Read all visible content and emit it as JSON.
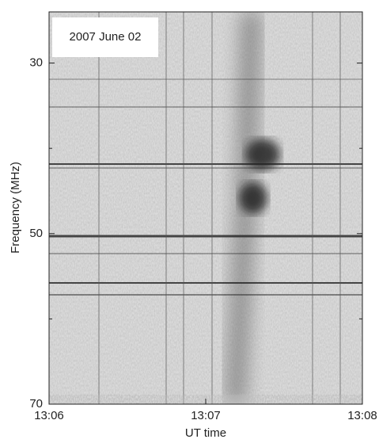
{
  "chart_data": {
    "type": "spectrogram",
    "annotation": "2007 June 02",
    "ylabel": "Frequency (MHz)",
    "xlabel": "UT time",
    "xlim": [
      786,
      788
    ],
    "xticks": [
      {
        "value": 786,
        "label": "13:06"
      },
      {
        "value": 787,
        "label": "13:07"
      },
      {
        "value": 788,
        "label": "13:08"
      }
    ],
    "ylim": [
      24,
      70
    ],
    "yinverted": true,
    "yticks": [
      30,
      50,
      70
    ],
    "minor_yticks": [
      40,
      60
    ]
  }
}
